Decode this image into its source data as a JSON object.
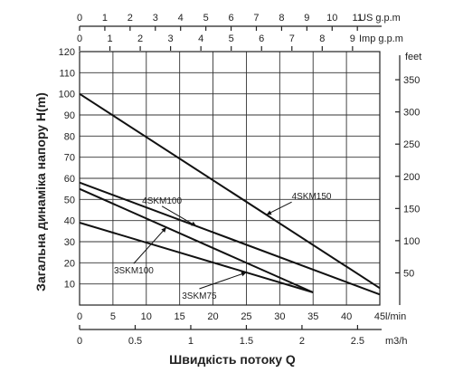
{
  "chart_data": {
    "type": "line",
    "ylabel": "Загальна динаміка напору H(m)",
    "xlabel": "Швидкість потоку Q",
    "y_left": {
      "unit": "",
      "min": 0,
      "max": 120,
      "ticks": [
        "10",
        "20",
        "30",
        "40",
        "50",
        "60",
        "70",
        "80",
        "90",
        "100",
        "110",
        "120"
      ]
    },
    "y_right": {
      "unit": "feet",
      "ticks": [
        "50",
        "100",
        "150",
        "200",
        "250",
        "300",
        "350"
      ],
      "values": [
        50,
        100,
        150,
        200,
        250,
        300,
        350
      ]
    },
    "x_lmin": {
      "unit": "l/min",
      "min": 0,
      "max": 45,
      "ticks": [
        "0",
        "5",
        "10",
        "15",
        "20",
        "25",
        "30",
        "35",
        "40",
        "45"
      ]
    },
    "x_m3h": {
      "unit": "m3/h",
      "ticks": [
        "0",
        "0.5",
        "1",
        "1.5",
        "2",
        "2.5"
      ],
      "values": [
        0,
        0.5,
        1,
        1.5,
        2,
        2.5
      ]
    },
    "x_usgpm": {
      "unit": "US g.p.m",
      "ticks": [
        "0",
        "1",
        "2",
        "3",
        "4",
        "5",
        "6",
        "7",
        "8",
        "9",
        "10",
        "11"
      ],
      "values": [
        0,
        1,
        2,
        3,
        4,
        5,
        6,
        7,
        8,
        9,
        10,
        11
      ]
    },
    "x_impgpm": {
      "unit": "Imp g.p.m",
      "ticks": [
        "0",
        "1",
        "2",
        "3",
        "4",
        "5",
        "6",
        "7",
        "8",
        "9"
      ],
      "values": [
        0,
        1,
        2,
        3,
        4,
        5,
        6,
        7,
        8,
        9
      ]
    },
    "grid": true,
    "series": [
      {
        "name": "4SKM150",
        "x": [
          0,
          45
        ],
        "y": [
          100,
          8
        ]
      },
      {
        "name": "4SKM100",
        "x": [
          0,
          45
        ],
        "y": [
          58,
          5
        ]
      },
      {
        "name": "3SKM100",
        "x": [
          0,
          35
        ],
        "y": [
          55,
          6
        ]
      },
      {
        "name": "3SKM75",
        "x": [
          0,
          35
        ],
        "y": [
          39,
          6
        ]
      }
    ]
  }
}
